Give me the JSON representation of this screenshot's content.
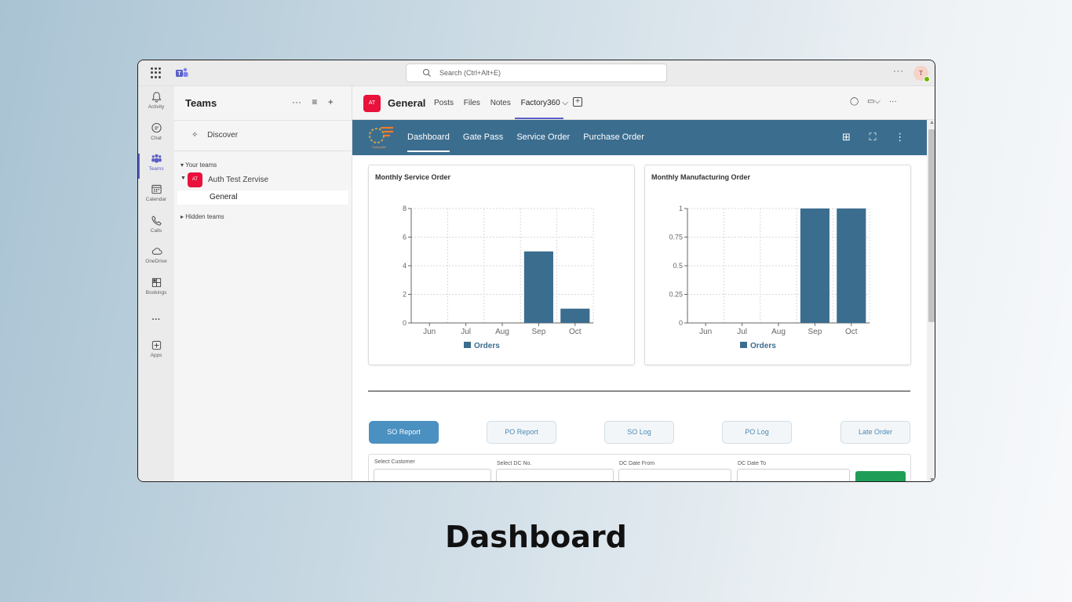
{
  "caption": "Dashboard",
  "titlebar": {
    "search_placeholder": "Search (Ctrl+Alt+E)",
    "more": "···",
    "user_initial": "T"
  },
  "rail": [
    {
      "label": "Activity",
      "icon": "bell-icon"
    },
    {
      "label": "Chat",
      "icon": "chat-icon"
    },
    {
      "label": "Teams",
      "icon": "teams-icon",
      "active": true
    },
    {
      "label": "Calendar",
      "icon": "calendar-icon"
    },
    {
      "label": "Calls",
      "icon": "phone-icon"
    },
    {
      "label": "OneDrive",
      "icon": "cloud-icon"
    },
    {
      "label": "Bookings",
      "icon": "bookings-icon"
    },
    {
      "label": "···",
      "icon": "more-icon"
    },
    {
      "label": "Apps",
      "icon": "apps-icon"
    }
  ],
  "teams_pane": {
    "title": "Teams",
    "discover": "Discover",
    "your_teams": "Your teams",
    "team": {
      "initials": "AT",
      "name": "Auth Test Zervise"
    },
    "channel": "General",
    "hidden_teams": "Hidden teams"
  },
  "channel_header": {
    "initials": "AT",
    "name": "General",
    "tabs": [
      "Posts",
      "Files",
      "Notes",
      "Factory360 ⌵"
    ]
  },
  "app": {
    "nav": [
      "Dashboard",
      "Gate Pass",
      "Service Order",
      "Purchase Order"
    ],
    "active_nav": "Dashboard",
    "accent": "#3b6d8f",
    "logo_caption": "Factory360"
  },
  "chart_data": [
    {
      "type": "bar",
      "title": "Monthly Service Order",
      "categories": [
        "Jun",
        "Jul",
        "Aug",
        "Sep",
        "Oct"
      ],
      "series": [
        {
          "name": "Orders",
          "values": [
            0,
            0,
            0,
            5,
            1
          ]
        }
      ],
      "ylim": [
        0,
        8
      ],
      "yticks": [
        "0",
        "2",
        "4",
        "6",
        "8"
      ],
      "ytick_values": [
        0,
        2,
        4,
        6,
        8
      ],
      "grid": true,
      "legend": "bottom",
      "color": "#3b6d8f"
    },
    {
      "type": "bar",
      "title": "Monthly Manufacturing Order",
      "categories": [
        "Jun",
        "Jul",
        "Aug",
        "Sep",
        "Oct"
      ],
      "series": [
        {
          "name": "Orders",
          "values": [
            0,
            0,
            0,
            1,
            1
          ]
        }
      ],
      "ylim": [
        0,
        1
      ],
      "yticks": [
        "0",
        "0.25",
        "0.5",
        "0.75",
        "1"
      ],
      "ytick_values": [
        0,
        0.25,
        0.5,
        0.75,
        1
      ],
      "grid": true,
      "legend": "bottom",
      "color": "#3b6d8f"
    }
  ],
  "report_buttons": [
    "SO Report",
    "PO Report",
    "SO Log",
    "PO Log",
    "Late Order"
  ],
  "filters": [
    "Select Customer",
    "Select DC No.",
    "DC Date From",
    "DC Date To"
  ]
}
